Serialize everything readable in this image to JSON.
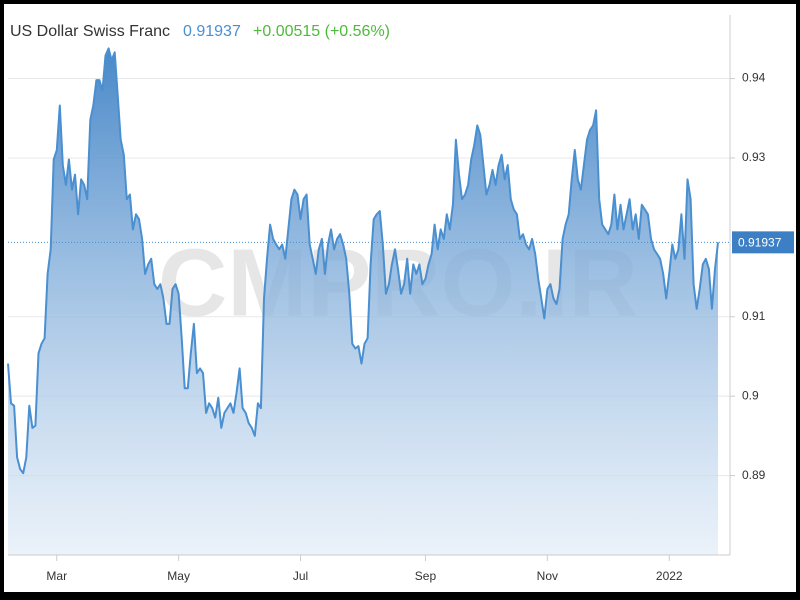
{
  "chart_data": {
    "type": "area",
    "title": "US Dollar Swiss Franc",
    "change": "+0.00515 (+0.56%)",
    "watermark": "CMPRO.IR",
    "color": "#4a8fd0",
    "values": [
      0.9041,
      0.8991,
      0.8988,
      0.8923,
      0.8908,
      0.8903,
      0.8923,
      0.8988,
      0.896,
      0.8963,
      0.9054,
      0.9066,
      0.9073,
      0.9154,
      0.9185,
      0.9298,
      0.931,
      0.9366,
      0.9291,
      0.9266,
      0.9298,
      0.926,
      0.9279,
      0.9229,
      0.9273,
      0.9266,
      0.9248,
      0.9348,
      0.9366,
      0.9398,
      0.9398,
      0.9385,
      0.9429,
      0.9438,
      0.9423,
      0.9433,
      0.9379,
      0.9323,
      0.9304,
      0.9248,
      0.9254,
      0.921,
      0.9229,
      0.9223,
      0.9198,
      0.9154,
      0.9166,
      0.9173,
      0.9141,
      0.9135,
      0.9141,
      0.9123,
      0.9091,
      0.9091,
      0.9135,
      0.9141,
      0.9129,
      0.9073,
      0.901,
      0.901,
      0.9054,
      0.9091,
      0.9029,
      0.9035,
      0.9029,
      0.8979,
      0.8991,
      0.8985,
      0.8973,
      0.8998,
      0.896,
      0.8979,
      0.8985,
      0.8991,
      0.8979,
      0.9004,
      0.9035,
      0.8985,
      0.8979,
      0.8966,
      0.896,
      0.895,
      0.8991,
      0.8985,
      0.9123,
      0.9173,
      0.9216,
      0.9198,
      0.9191,
      0.9185,
      0.9191,
      0.9173,
      0.921,
      0.9248,
      0.926,
      0.9254,
      0.9223,
      0.9248,
      0.9254,
      0.9191,
      0.9173,
      0.9154,
      0.9185,
      0.9198,
      0.9154,
      0.9191,
      0.921,
      0.9185,
      0.9198,
      0.9204,
      0.9191,
      0.9173,
      0.9129,
      0.9066,
      0.906,
      0.9063,
      0.9041,
      0.9066,
      0.9073,
      0.9166,
      0.9223,
      0.9229,
      0.9233,
      0.9191,
      0.9129,
      0.9141,
      0.9166,
      0.9185,
      0.916,
      0.9129,
      0.9141,
      0.9173,
      0.9129,
      0.9166,
      0.9154,
      0.9166,
      0.9141,
      0.9148,
      0.9166,
      0.9179,
      0.9216,
      0.9185,
      0.921,
      0.9198,
      0.9229,
      0.921,
      0.9241,
      0.9323,
      0.9279,
      0.9248,
      0.9254,
      0.9266,
      0.9298,
      0.9316,
      0.9341,
      0.9329,
      0.9291,
      0.9254,
      0.9266,
      0.9285,
      0.9266,
      0.9291,
      0.9304,
      0.9273,
      0.9291,
      0.9248,
      0.9235,
      0.9229,
      0.9198,
      0.9204,
      0.9191,
      0.9185,
      0.9198,
      0.9179,
      0.9148,
      0.9123,
      0.9098,
      0.9135,
      0.9141,
      0.9123,
      0.9116,
      0.9135,
      0.9198,
      0.9216,
      0.9229,
      0.9273,
      0.931,
      0.9273,
      0.926,
      0.9291,
      0.9323,
      0.9335,
      0.9341,
      0.936,
      0.9248,
      0.9216,
      0.921,
      0.9204,
      0.9216,
      0.9254,
      0.921,
      0.9241,
      0.921,
      0.9229,
      0.9248,
      0.921,
      0.9229,
      0.9198,
      0.9241,
      0.9235,
      0.9229,
      0.9198,
      0.9185,
      0.9179,
      0.9173,
      0.9154,
      0.9123,
      0.9154,
      0.9191,
      0.9173,
      0.9185,
      0.9229,
      0.9173,
      0.9273,
      0.9248,
      0.9141,
      0.911,
      0.9135,
      0.9166,
      0.9173,
      0.916,
      0.911,
      0.916,
      0.91937
    ],
    "xlim": [
      0,
      233
    ],
    "xticks": [
      {
        "value": 16,
        "label": "Mar"
      },
      {
        "value": 56,
        "label": "May"
      },
      {
        "value": 96,
        "label": "Jul"
      },
      {
        "value": 137,
        "label": "Sep"
      },
      {
        "value": 177,
        "label": "Nov"
      },
      {
        "value": 217,
        "label": "2022"
      }
    ],
    "ylim": [
      0.88,
      0.948
    ],
    "yticks": [
      0.89,
      0.9,
      0.91,
      0.93,
      0.94
    ],
    "grid": true
  }
}
